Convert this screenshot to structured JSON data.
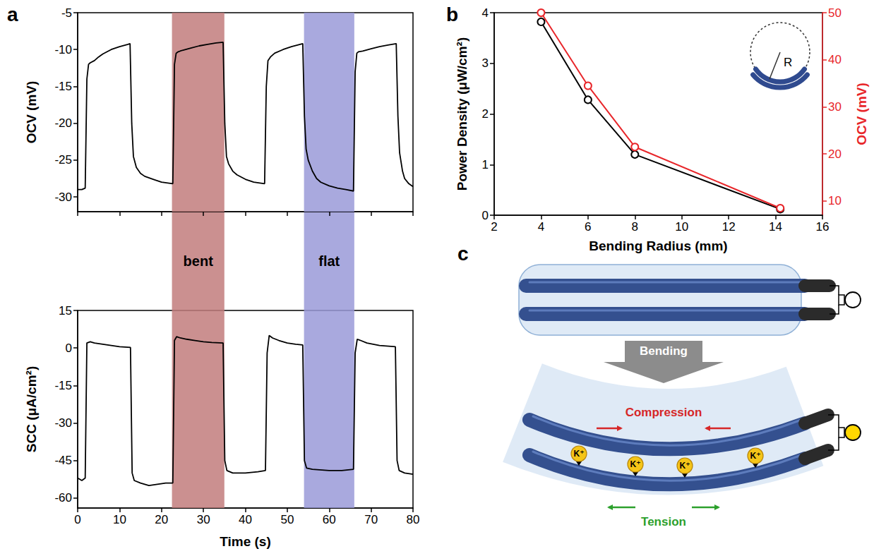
{
  "chart_data": [
    {
      "panel": "a",
      "type": "line",
      "xlabel": "Time (s)",
      "xlim": [
        0,
        80
      ],
      "xticks": [
        0,
        10,
        20,
        30,
        40,
        50,
        60,
        70,
        80
      ],
      "grid": false,
      "shaded_regions": [
        {
          "label": "bent",
          "start": 22.5,
          "end": 35,
          "color": "#c27d7d"
        },
        {
          "label": "flat",
          "start": 54,
          "end": 66,
          "color": "#9a9ad8"
        }
      ],
      "subplots": [
        {
          "ylabel": "OCV (mV)",
          "ylim": [
            -32,
            -5
          ],
          "yticks": [
            -30,
            -25,
            -20,
            -15,
            -10,
            -5
          ],
          "tick_labels": "y",
          "color": "#000000",
          "marker": "none",
          "line_style": "solid",
          "x": [
            0,
            1,
            1.8,
            2.2,
            2.6,
            3,
            4,
            5,
            6,
            8,
            10,
            12,
            12.5,
            12.9,
            13.3,
            14,
            15,
            16,
            18,
            20,
            22.7,
            23.1,
            23.5,
            24,
            25,
            27,
            29,
            31,
            33,
            34.7,
            35.1,
            35.5,
            36,
            37,
            38,
            40,
            42,
            44.6,
            45,
            45.4,
            46,
            47,
            49,
            51,
            53.7,
            54.1,
            54.5,
            55,
            56,
            57,
            58,
            60,
            62,
            64,
            65.8,
            66.2,
            66.6,
            67,
            68,
            70,
            72,
            74,
            76,
            76.4,
            76.8,
            77.5,
            78,
            79,
            80
          ],
          "values": [
            -29,
            -29,
            -28.8,
            -14,
            -12,
            -11.8,
            -11.5,
            -11,
            -10.6,
            -10,
            -9.6,
            -9.3,
            -9.2,
            -20,
            -24.5,
            -26,
            -26.8,
            -27.2,
            -27.6,
            -28,
            -28.2,
            -12,
            -10.5,
            -10.3,
            -10.1,
            -9.8,
            -9.5,
            -9.3,
            -9.1,
            -9,
            -20,
            -24.5,
            -25.5,
            -26.5,
            -27,
            -27.6,
            -28,
            -28.2,
            -15,
            -11.5,
            -11,
            -10.5,
            -10,
            -9.6,
            -9.2,
            -19,
            -23.5,
            -25,
            -26.5,
            -27.5,
            -28,
            -28.5,
            -28.8,
            -29,
            -29.2,
            -13,
            -10.5,
            -10.3,
            -10.2,
            -9.9,
            -9.6,
            -9.4,
            -9.2,
            -19,
            -24,
            -26.5,
            -27.5,
            -28.2,
            -28.6
          ]
        },
        {
          "ylabel": "SCC (μA/cm²)",
          "ylim": [
            -64,
            15
          ],
          "yticks": [
            -60,
            -45,
            -30,
            -15,
            0,
            15
          ],
          "color": "#000000",
          "marker": "none",
          "line_style": "solid",
          "x": [
            0,
            1,
            1.8,
            2.2,
            3,
            4,
            6,
            8,
            10,
            12.6,
            13,
            13.5,
            15,
            17,
            19,
            21,
            22.7,
            23.1,
            23.6,
            24.5,
            26,
            28,
            30,
            32,
            34.7,
            35.1,
            35.6,
            37,
            40,
            43,
            44.8,
            45.2,
            45.7,
            46.5,
            48,
            50,
            52,
            53.7,
            54.1,
            54.6,
            56,
            60,
            63,
            65.8,
            66.2,
            66.7,
            67.5,
            69,
            72,
            75.8,
            76.2,
            76.7,
            78,
            80
          ],
          "values": [
            -52,
            -53,
            -52,
            2,
            2.5,
            2,
            1.5,
            1,
            0.5,
            0.2,
            -50,
            -53,
            -54,
            -55,
            -54.5,
            -54,
            -54,
            3,
            4.5,
            4,
            3.5,
            3,
            2.5,
            2.2,
            2,
            -45,
            -49,
            -50,
            -50,
            -49.5,
            -49,
            -2,
            5,
            4,
            3,
            2,
            1.5,
            1.2,
            -45,
            -48,
            -48.5,
            -49,
            -49,
            -48.5,
            -2,
            3.5,
            3,
            2,
            1,
            0.5,
            -45,
            -49,
            -50,
            -50.5
          ]
        }
      ]
    },
    {
      "panel": "b",
      "type": "line",
      "xlabel": "Bending Radius (mm)",
      "ylabel": "Power Density (μW/cm²)",
      "y2label": "OCV (mV)",
      "x": [
        4,
        6,
        8,
        14.2
      ],
      "xlim": [
        2,
        16
      ],
      "xticks": [
        2,
        4,
        6,
        8,
        10,
        12,
        14,
        16
      ],
      "ylim": [
        0,
        4
      ],
      "yticks": [
        0,
        1,
        2,
        3,
        4
      ],
      "y2lim": [
        7,
        50
      ],
      "y2ticks": [
        10,
        20,
        30,
        40,
        50
      ],
      "grid": false,
      "annotation": "R",
      "series": [
        {
          "color": "#000000",
          "marker": "open_circle",
          "line_style": "solid",
          "values": [
            3.82,
            2.28,
            1.2,
            0.12
          ]
        },
        {
          "color": "#e8262a",
          "marker": "open_circle",
          "line_style": "solid",
          "axis": "y2",
          "values": [
            50,
            34.5,
            21.5,
            8.5
          ]
        }
      ]
    }
  ],
  "diagram": {
    "panel": "c",
    "arrow_label": "Bending",
    "compression_label": "Compression",
    "tension_label": "Tension",
    "ion_labels": [
      "K⁺",
      "K⁺",
      "K⁺",
      "K⁺"
    ]
  }
}
